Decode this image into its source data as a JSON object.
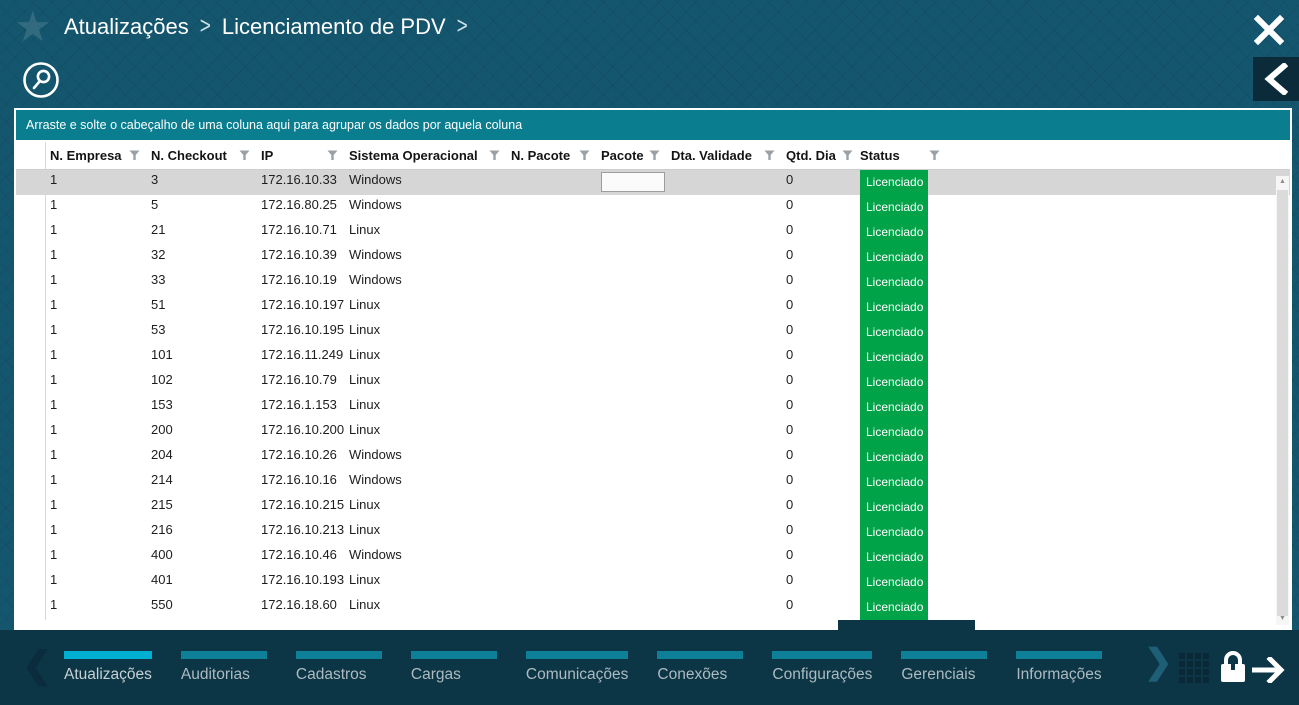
{
  "header": {
    "breadcrumb": [
      "Atualizações",
      "Licenciamento de PDV"
    ],
    "breadcrumb_separator": ">"
  },
  "icons": {
    "star": "★",
    "close": "✕",
    "back_chevron": "❮",
    "search": "magnifier-in-circle",
    "filter": "funnel",
    "scrollbar_up": "▲",
    "scrollbar_down": "▼",
    "tab_scroll_left": "❮",
    "tab_scroll_right": "❯",
    "apps_grid": "4x4-dot-grid",
    "lock": "padlock",
    "forward_arrow": "right-arrow"
  },
  "grid": {
    "group_hint": "Arraste e solte o cabeçalho de uma coluna aqui para agrupar os dados por aquela coluna",
    "columns": [
      "N. Empresa",
      "N. Checkout",
      "IP",
      "Sistema Operacional",
      "N. Pacote",
      "Pacote",
      "Dta. Validade",
      "Qtd. Dia",
      "Status"
    ],
    "selected_row_index": 0,
    "inline_editor": {
      "row": 0,
      "column": "Pacote",
      "value": ""
    },
    "rows": [
      {
        "n_empresa": "1",
        "n_checkout": "3",
        "ip": "172.16.10.33",
        "sistema_operacional": "Windows",
        "n_pacote": "",
        "pacote": "",
        "dta_validade": "",
        "qtd_dia": "0",
        "status": "Licenciado"
      },
      {
        "n_empresa": "1",
        "n_checkout": "5",
        "ip": "172.16.80.25",
        "sistema_operacional": "Windows",
        "n_pacote": "",
        "pacote": "",
        "dta_validade": "",
        "qtd_dia": "0",
        "status": "Licenciado"
      },
      {
        "n_empresa": "1",
        "n_checkout": "21",
        "ip": "172.16.10.71",
        "sistema_operacional": "Linux",
        "n_pacote": "",
        "pacote": "",
        "dta_validade": "",
        "qtd_dia": "0",
        "status": "Licenciado"
      },
      {
        "n_empresa": "1",
        "n_checkout": "32",
        "ip": "172.16.10.39",
        "sistema_operacional": "Windows",
        "n_pacote": "",
        "pacote": "",
        "dta_validade": "",
        "qtd_dia": "0",
        "status": "Licenciado"
      },
      {
        "n_empresa": "1",
        "n_checkout": "33",
        "ip": "172.16.10.19",
        "sistema_operacional": "Windows",
        "n_pacote": "",
        "pacote": "",
        "dta_validade": "",
        "qtd_dia": "0",
        "status": "Licenciado"
      },
      {
        "n_empresa": "1",
        "n_checkout": "51",
        "ip": "172.16.10.197",
        "sistema_operacional": "Linux",
        "n_pacote": "",
        "pacote": "",
        "dta_validade": "",
        "qtd_dia": "0",
        "status": "Licenciado"
      },
      {
        "n_empresa": "1",
        "n_checkout": "53",
        "ip": "172.16.10.195",
        "sistema_operacional": "Linux",
        "n_pacote": "",
        "pacote": "",
        "dta_validade": "",
        "qtd_dia": "0",
        "status": "Licenciado"
      },
      {
        "n_empresa": "1",
        "n_checkout": "101",
        "ip": "172.16.11.249",
        "sistema_operacional": "Linux",
        "n_pacote": "",
        "pacote": "",
        "dta_validade": "",
        "qtd_dia": "0",
        "status": "Licenciado"
      },
      {
        "n_empresa": "1",
        "n_checkout": "102",
        "ip": "172.16.10.79",
        "sistema_operacional": "Linux",
        "n_pacote": "",
        "pacote": "",
        "dta_validade": "",
        "qtd_dia": "0",
        "status": "Licenciado"
      },
      {
        "n_empresa": "1",
        "n_checkout": "153",
        "ip": "172.16.1.153",
        "sistema_operacional": "Linux",
        "n_pacote": "",
        "pacote": "",
        "dta_validade": "",
        "qtd_dia": "0",
        "status": "Licenciado"
      },
      {
        "n_empresa": "1",
        "n_checkout": "200",
        "ip": "172.16.10.200",
        "sistema_operacional": "Linux",
        "n_pacote": "",
        "pacote": "",
        "dta_validade": "",
        "qtd_dia": "0",
        "status": "Licenciado"
      },
      {
        "n_empresa": "1",
        "n_checkout": "204",
        "ip": "172.16.10.26",
        "sistema_operacional": "Windows",
        "n_pacote": "",
        "pacote": "",
        "dta_validade": "",
        "qtd_dia": "0",
        "status": "Licenciado"
      },
      {
        "n_empresa": "1",
        "n_checkout": "214",
        "ip": "172.16.10.16",
        "sistema_operacional": "Windows",
        "n_pacote": "",
        "pacote": "",
        "dta_validade": "",
        "qtd_dia": "0",
        "status": "Licenciado"
      },
      {
        "n_empresa": "1",
        "n_checkout": "215",
        "ip": "172.16.10.215",
        "sistema_operacional": "Linux",
        "n_pacote": "",
        "pacote": "",
        "dta_validade": "",
        "qtd_dia": "0",
        "status": "Licenciado"
      },
      {
        "n_empresa": "1",
        "n_checkout": "216",
        "ip": "172.16.10.213",
        "sistema_operacional": "Linux",
        "n_pacote": "",
        "pacote": "",
        "dta_validade": "",
        "qtd_dia": "0",
        "status": "Licenciado"
      },
      {
        "n_empresa": "1",
        "n_checkout": "400",
        "ip": "172.16.10.46",
        "sistema_operacional": "Windows",
        "n_pacote": "",
        "pacote": "",
        "dta_validade": "",
        "qtd_dia": "0",
        "status": "Licenciado"
      },
      {
        "n_empresa": "1",
        "n_checkout": "401",
        "ip": "172.16.10.193",
        "sistema_operacional": "Linux",
        "n_pacote": "",
        "pacote": "",
        "dta_validade": "",
        "qtd_dia": "0",
        "status": "Licenciado"
      },
      {
        "n_empresa": "1",
        "n_checkout": "550",
        "ip": "172.16.18.60",
        "sistema_operacional": "Linux",
        "n_pacote": "",
        "pacote": "",
        "dta_validade": "",
        "qtd_dia": "0",
        "status": "Licenciado"
      }
    ]
  },
  "bottom_nav": {
    "tabs": [
      {
        "label": "Atualizações",
        "active": true
      },
      {
        "label": "Auditorias",
        "active": false
      },
      {
        "label": "Cadastros",
        "active": false
      },
      {
        "label": "Cargas",
        "active": false
      },
      {
        "label": "Comunicações",
        "active": false
      },
      {
        "label": "Conexões",
        "active": false
      },
      {
        "label": "Configurações",
        "active": false
      },
      {
        "label": "Gerenciais",
        "active": false
      },
      {
        "label": "Informações",
        "active": false
      }
    ]
  },
  "colors": {
    "header_bg": "#14566E",
    "group_bar": "#0A7D8F",
    "status_licensed": "#00A348",
    "active_tab_bar": "#00B0D2",
    "inactive_tab_bar": "#0D7F96",
    "navbar_bg": "#0C3645",
    "selected_row": "#D6D6D6"
  }
}
